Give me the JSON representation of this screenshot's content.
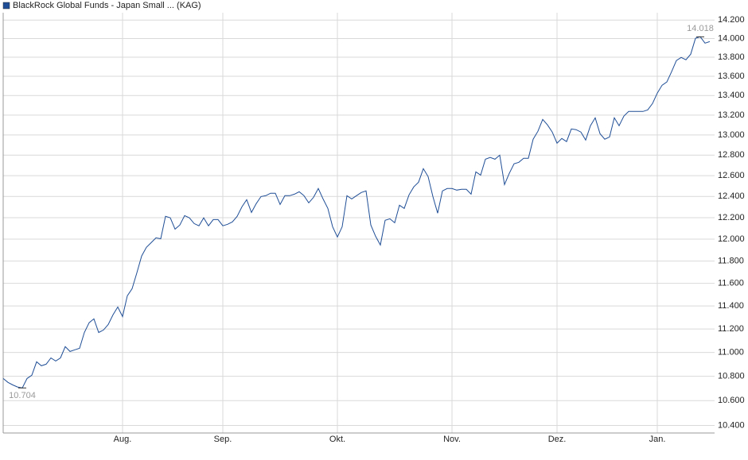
{
  "chart_data": {
    "type": "line",
    "log_scale_y": true,
    "grid": true,
    "legend": "top-left",
    "ylim": [
      10.34,
      14.28
    ],
    "yticks": [
      {
        "value": 10.4,
        "label": "10.400"
      },
      {
        "value": 10.6,
        "label": "10.600"
      },
      {
        "value": 10.8,
        "label": "10.800"
      },
      {
        "value": 11.0,
        "label": "11.000"
      },
      {
        "value": 11.2,
        "label": "11.200"
      },
      {
        "value": 11.4,
        "label": "11.400"
      },
      {
        "value": 11.6,
        "label": "11.600"
      },
      {
        "value": 11.8,
        "label": "11.800"
      },
      {
        "value": 12.0,
        "label": "12.000"
      },
      {
        "value": 12.2,
        "label": "12.200"
      },
      {
        "value": 12.4,
        "label": "12.400"
      },
      {
        "value": 12.6,
        "label": "12.600"
      },
      {
        "value": 12.8,
        "label": "12.800"
      },
      {
        "value": 13.0,
        "label": "13.000"
      },
      {
        "value": 13.2,
        "label": "13.200"
      },
      {
        "value": 13.4,
        "label": "13.400"
      },
      {
        "value": 13.6,
        "label": "13.600"
      },
      {
        "value": 13.8,
        "label": "13.800"
      },
      {
        "value": 14.0,
        "label": "14.000"
      },
      {
        "value": 14.2,
        "label": "14.200"
      }
    ],
    "categories": [
      null,
      null,
      null,
      null,
      null,
      null,
      null,
      null,
      null,
      null,
      null,
      null,
      null,
      null,
      null,
      null,
      null,
      null,
      null,
      null,
      null,
      null,
      null,
      null,
      null,
      "Aug.",
      null,
      null,
      null,
      null,
      null,
      null,
      null,
      null,
      null,
      null,
      null,
      null,
      null,
      null,
      null,
      null,
      null,
      null,
      null,
      null,
      "Sep.",
      null,
      null,
      null,
      null,
      null,
      null,
      null,
      null,
      null,
      null,
      null,
      null,
      null,
      null,
      null,
      null,
      null,
      null,
      null,
      null,
      null,
      null,
      null,
      "Okt.",
      null,
      null,
      null,
      null,
      null,
      null,
      null,
      null,
      null,
      null,
      null,
      null,
      null,
      null,
      null,
      null,
      null,
      null,
      null,
      null,
      null,
      null,
      null,
      "Nov.",
      null,
      null,
      null,
      null,
      null,
      null,
      null,
      null,
      null,
      null,
      null,
      null,
      null,
      null,
      null,
      null,
      null,
      null,
      null,
      null,
      null,
      "Dez.",
      null,
      null,
      null,
      null,
      null,
      null,
      null,
      null,
      null,
      null,
      null,
      null,
      null,
      null,
      null,
      null,
      null,
      null,
      null,
      null,
      "Jan.",
      null,
      null,
      null,
      null,
      null,
      null,
      null,
      null,
      null,
      null,
      null
    ],
    "series": [
      {
        "name": "BlackRock Global Funds - Japan Small ... (KAG)",
        "color": "#1f4e96",
        "values": [
          10.782,
          10.75,
          10.729,
          10.712,
          10.704,
          10.782,
          10.809,
          10.921,
          10.888,
          10.901,
          10.954,
          10.928,
          10.954,
          11.049,
          11.008,
          11.022,
          11.035,
          11.17,
          11.254,
          11.288,
          11.17,
          11.191,
          11.238,
          11.322,
          11.391,
          11.307,
          11.489,
          11.552,
          11.694,
          11.846,
          11.925,
          11.968,
          12.012,
          12.004,
          12.212,
          12.198,
          12.093,
          12.131,
          12.219,
          12.198,
          12.145,
          12.124,
          12.198,
          12.124,
          12.182,
          12.182,
          12.124,
          12.138,
          12.16,
          12.212,
          12.301,
          12.37,
          12.249,
          12.332,
          12.399,
          12.408,
          12.431,
          12.431,
          12.324,
          12.408,
          12.408,
          12.422,
          12.445,
          12.408,
          12.34,
          12.392,
          12.476,
          12.377,
          12.287,
          12.115,
          12.02,
          12.115,
          12.408,
          12.377,
          12.408,
          12.438,
          12.453,
          12.131,
          12.027,
          11.946,
          12.175,
          12.189,
          12.152,
          12.317,
          12.287,
          12.415,
          12.492,
          12.537,
          12.668,
          12.591,
          12.399,
          12.242,
          12.453,
          12.476,
          12.476,
          12.461,
          12.468,
          12.468,
          12.422,
          12.637,
          12.605,
          12.76,
          12.777,
          12.76,
          12.8,
          12.514,
          12.622,
          12.715,
          12.73,
          12.769,
          12.769,
          12.958,
          13.037,
          13.156,
          13.101,
          13.029,
          12.918,
          12.965,
          12.934,
          13.06,
          13.053,
          13.029,
          12.949,
          13.093,
          13.172,
          13.013,
          12.958,
          12.98,
          13.172,
          13.093,
          13.189,
          13.237,
          13.237,
          13.237,
          13.237,
          13.253,
          13.318,
          13.425,
          13.506,
          13.54,
          13.648,
          13.765,
          13.798,
          13.773,
          13.832,
          14.002,
          14.018,
          13.95,
          13.967
        ],
        "value_labels": [
          null,
          null,
          null,
          null,
          "10.704",
          null,
          null,
          null,
          null,
          null,
          null,
          null,
          null,
          null,
          null,
          null,
          null,
          null,
          null,
          null,
          null,
          null,
          null,
          null,
          null,
          null,
          null,
          null,
          null,
          null,
          null,
          null,
          null,
          null,
          null,
          null,
          null,
          null,
          null,
          null,
          null,
          null,
          null,
          null,
          null,
          null,
          null,
          null,
          null,
          null,
          null,
          null,
          null,
          null,
          null,
          null,
          null,
          null,
          null,
          null,
          null,
          null,
          null,
          null,
          null,
          null,
          null,
          null,
          null,
          null,
          null,
          null,
          null,
          null,
          null,
          null,
          null,
          null,
          null,
          null,
          null,
          null,
          null,
          null,
          null,
          null,
          null,
          null,
          null,
          null,
          null,
          null,
          null,
          null,
          null,
          null,
          null,
          null,
          null,
          null,
          null,
          null,
          null,
          null,
          null,
          null,
          null,
          null,
          null,
          null,
          null,
          null,
          null,
          null,
          null,
          null,
          null,
          null,
          null,
          null,
          null,
          null,
          null,
          null,
          null,
          null,
          null,
          null,
          null,
          null,
          null,
          null,
          null,
          null,
          null,
          null,
          null,
          null,
          null,
          null,
          null,
          null,
          null,
          null,
          null,
          null,
          "14.018",
          null,
          null
        ]
      }
    ]
  }
}
